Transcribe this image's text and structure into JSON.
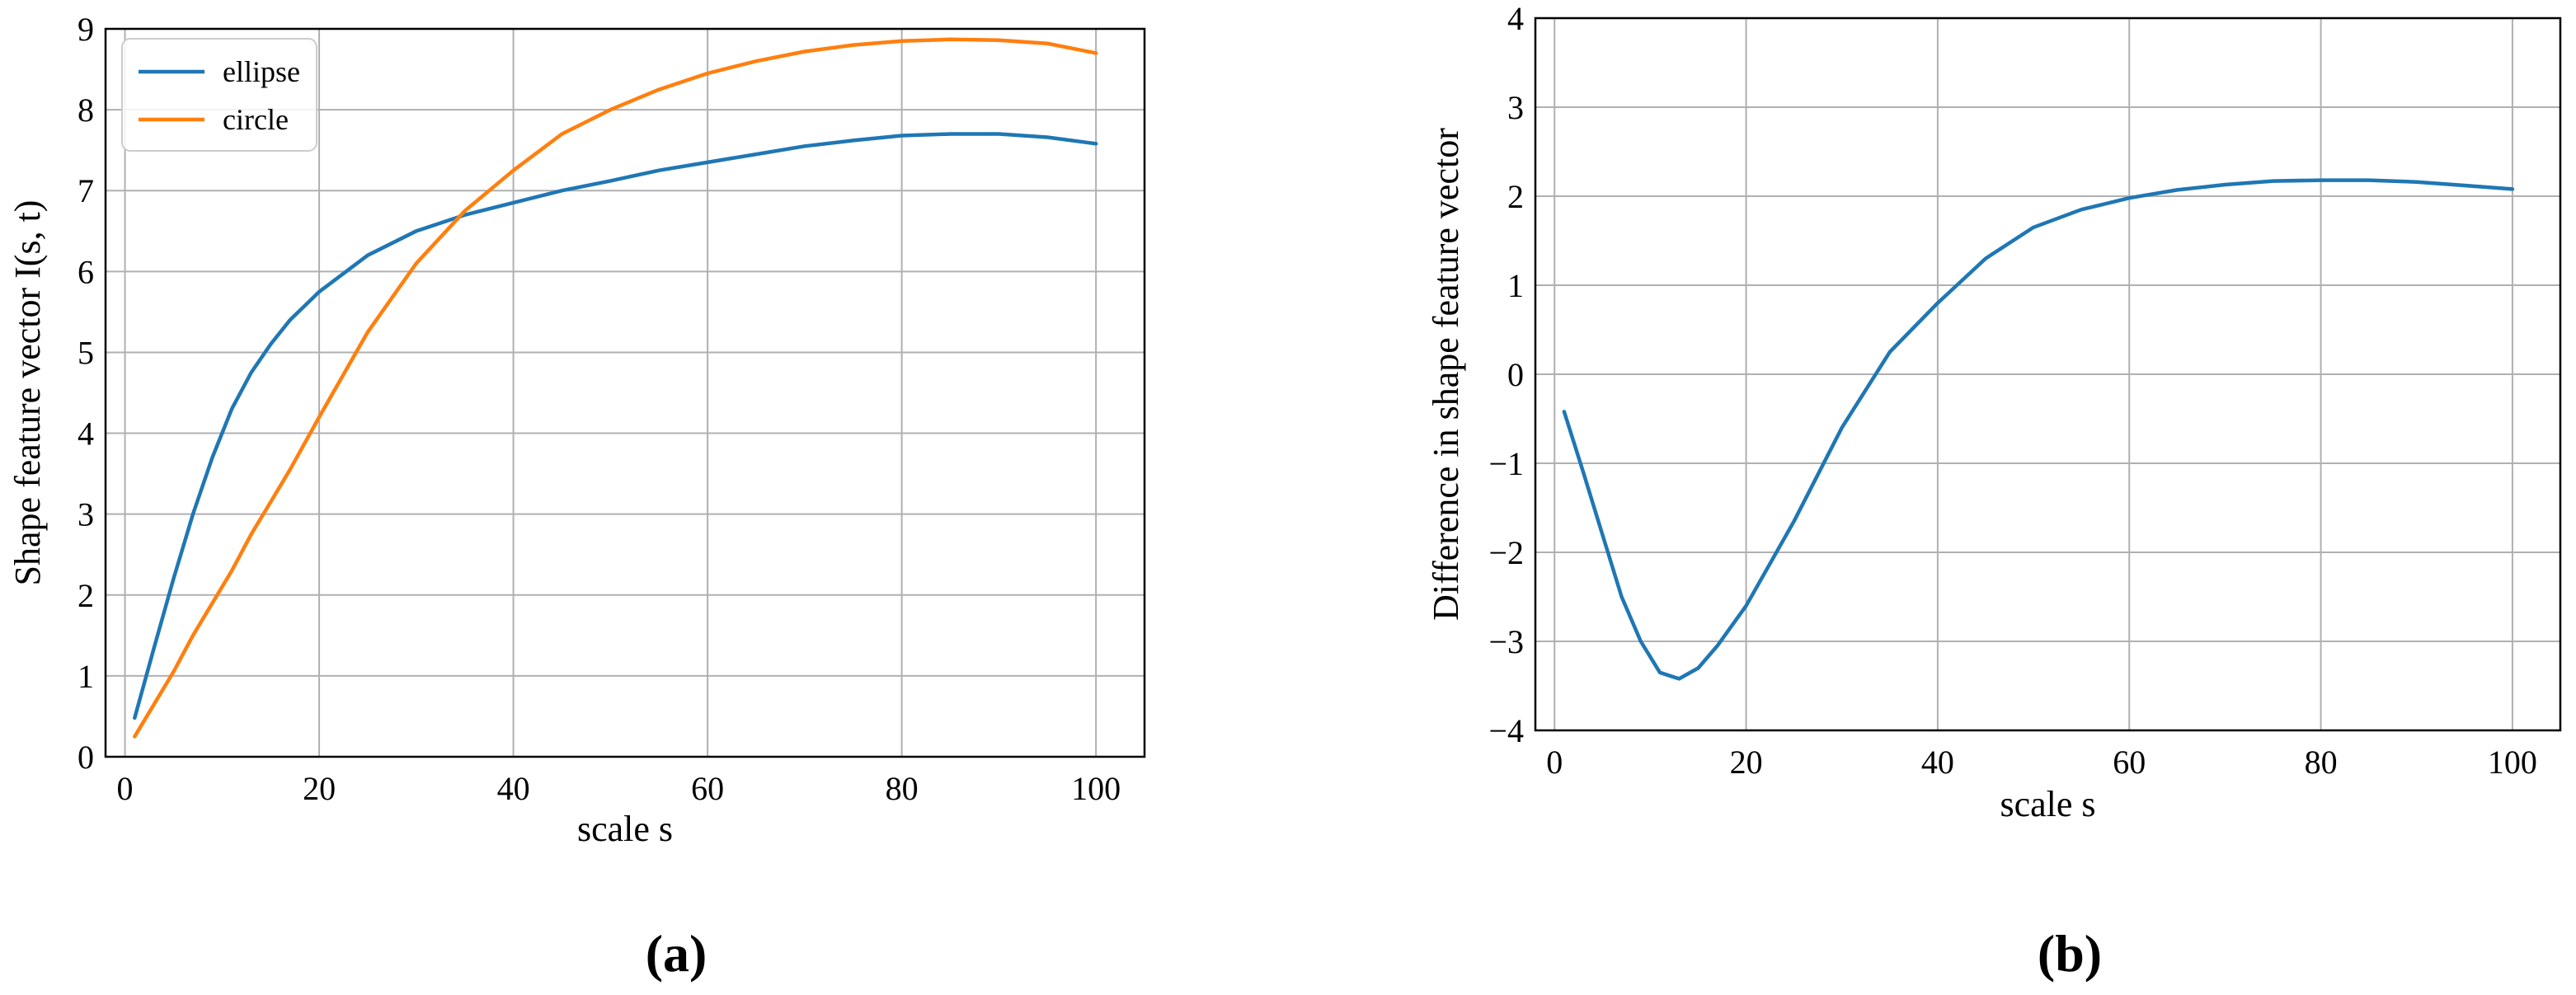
{
  "colors": {
    "ellipse": "#1f77b4",
    "circle": "#ff7f0e",
    "grid": "#b0b0b0",
    "axis": "#000000"
  },
  "panel_labels": {
    "a": "(a)",
    "b": "(b)"
  },
  "chart_data": [
    {
      "type": "line",
      "panel": "(a)",
      "title": "",
      "xlabel": "scale s",
      "ylabel": "Shape feature vector I(s, t)",
      "xlim": [
        -2,
        105
      ],
      "ylim": [
        0,
        9
      ],
      "xticks": [
        0,
        20,
        40,
        60,
        80,
        100
      ],
      "yticks": [
        0,
        1,
        2,
        3,
        4,
        5,
        6,
        7,
        8,
        9
      ],
      "grid": true,
      "legend": "top-left",
      "x": [
        1,
        3,
        5,
        7,
        9,
        11,
        13,
        15,
        17,
        20,
        25,
        30,
        35,
        40,
        45,
        50,
        55,
        60,
        65,
        70,
        75,
        80,
        85,
        90,
        95,
        100
      ],
      "series": [
        {
          "name": "ellipse",
          "color": "#1f77b4",
          "values": [
            0.48,
            1.35,
            2.2,
            3.0,
            3.7,
            4.3,
            4.75,
            5.1,
            5.4,
            5.75,
            6.2,
            6.5,
            6.7,
            6.85,
            7.0,
            7.12,
            7.25,
            7.35,
            7.45,
            7.55,
            7.62,
            7.68,
            7.7,
            7.7,
            7.66,
            7.58
          ]
        },
        {
          "name": "circle",
          "color": "#ff7f0e",
          "values": [
            0.25,
            0.65,
            1.05,
            1.5,
            1.9,
            2.3,
            2.75,
            3.15,
            3.55,
            4.2,
            5.25,
            6.1,
            6.75,
            7.25,
            7.7,
            8.0,
            8.25,
            8.45,
            8.6,
            8.72,
            8.8,
            8.85,
            8.87,
            8.86,
            8.82,
            8.7
          ]
        }
      ]
    },
    {
      "type": "line",
      "panel": "(b)",
      "title": "",
      "xlabel": "scale s",
      "ylabel": "Difference in shape feature vector",
      "xlim": [
        -2,
        105
      ],
      "ylim": [
        -4,
        4
      ],
      "xticks": [
        0,
        20,
        40,
        60,
        80,
        100
      ],
      "yticks": [
        -4,
        -3,
        -2,
        -1,
        0,
        1,
        2,
        3,
        4
      ],
      "grid": true,
      "legend": "none",
      "x": [
        1,
        3,
        5,
        7,
        9,
        11,
        13,
        15,
        17,
        20,
        25,
        30,
        35,
        40,
        45,
        50,
        55,
        60,
        65,
        70,
        75,
        80,
        85,
        90,
        95,
        100
      ],
      "series": [
        {
          "name": "",
          "color": "#1f77b4",
          "values": [
            -0.42,
            -1.1,
            -1.8,
            -2.5,
            -3.0,
            -3.35,
            -3.42,
            -3.3,
            -3.05,
            -2.6,
            -1.65,
            -0.6,
            0.25,
            0.8,
            1.3,
            1.65,
            1.85,
            1.98,
            2.07,
            2.13,
            2.17,
            2.18,
            2.18,
            2.16,
            2.12,
            2.08
          ]
        }
      ]
    }
  ]
}
